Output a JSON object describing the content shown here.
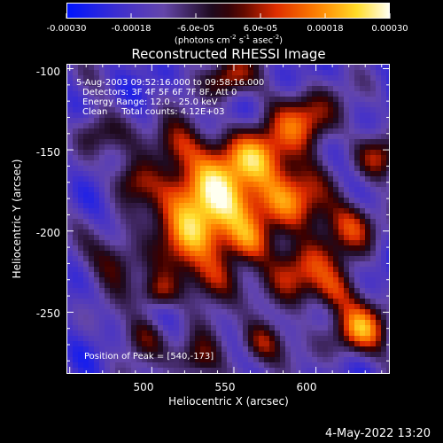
{
  "colorbar": {
    "ticks": [
      "-0.00030",
      "-0.00018",
      "-6.0e-05",
      "6.0e-05",
      "0.00018",
      "0.00030"
    ],
    "unit_parts": {
      "a": "(photons cm",
      "e1": "-2",
      "b": " s",
      "e2": "-1",
      "c": " asec",
      "e3": "-2",
      "d": ")"
    },
    "colors": {
      "low": "#1a1aff",
      "mid": "#000000",
      "high": "#fffff0"
    }
  },
  "plot": {
    "title": "Reconstructed RHESSI Image",
    "annotations": {
      "time": "5-Aug-2003 09:52:16.000 to 09:58:16.000",
      "detectors": "Detectors: 3F 4F 5F 6F 7F 8F, Att 0",
      "energy": "Energy Range: 12.0 - 25.0 keV",
      "clean": "Clean     Total counts: 4.12E+03",
      "peak": "Position of Peak = [540,-173]"
    },
    "xlabel": "Heliocentric X (arcsec)",
    "ylabel": "Heliocentric Y (arcsec)",
    "xticks": [
      "500",
      "550",
      "600"
    ],
    "yticks": [
      "-100",
      "-150",
      "-200",
      "-250"
    ],
    "xrange": [
      448,
      645
    ],
    "yrange": [
      -288,
      -97
    ],
    "peak": {
      "x": 540,
      "y": -173
    }
  },
  "footer": {
    "date": "4-May-2022 13:20"
  }
}
